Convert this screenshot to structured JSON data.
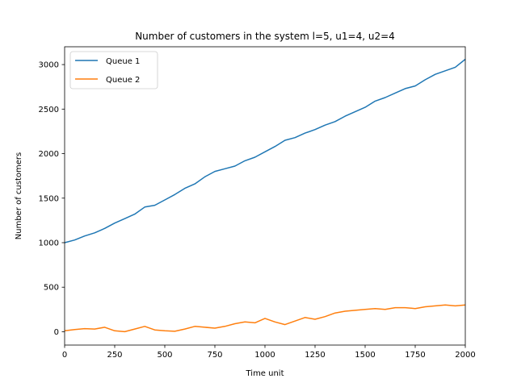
{
  "chart_data": {
    "type": "line",
    "title": "Number of customers in the system l=5, u1=4, u2=4",
    "xlabel": "Time unit",
    "ylabel": "Number of customers",
    "xlim": [
      0,
      2000
    ],
    "ylim": [
      -150,
      3200
    ],
    "xticks": [
      0,
      250,
      500,
      750,
      1000,
      1250,
      1500,
      1750,
      2000
    ],
    "yticks": [
      0,
      500,
      1000,
      1500,
      2000,
      2500,
      3000
    ],
    "grid": false,
    "legend_position": "top-left",
    "series": [
      {
        "name": "Queue 1",
        "color": "#1f77b4",
        "x": [
          0,
          50,
          100,
          150,
          200,
          250,
          300,
          350,
          400,
          450,
          500,
          550,
          600,
          650,
          700,
          750,
          800,
          850,
          900,
          950,
          1000,
          1050,
          1100,
          1150,
          1200,
          1250,
          1300,
          1350,
          1400,
          1450,
          1500,
          1550,
          1600,
          1650,
          1700,
          1750,
          1800,
          1850,
          1900,
          1950,
          2000
        ],
        "values": [
          1000,
          1030,
          1075,
          1110,
          1160,
          1220,
          1270,
          1320,
          1400,
          1420,
          1480,
          1540,
          1610,
          1660,
          1740,
          1800,
          1830,
          1860,
          1920,
          1960,
          2020,
          2080,
          2150,
          2180,
          2230,
          2270,
          2320,
          2360,
          2420,
          2470,
          2520,
          2590,
          2630,
          2680,
          2730,
          2760,
          2830,
          2890,
          2930,
          2970,
          3060
        ]
      },
      {
        "name": "Queue 2",
        "color": "#ff7f0e",
        "x": [
          0,
          50,
          100,
          150,
          200,
          250,
          300,
          350,
          400,
          450,
          500,
          550,
          600,
          650,
          700,
          750,
          800,
          850,
          900,
          950,
          1000,
          1050,
          1100,
          1150,
          1200,
          1250,
          1300,
          1350,
          1400,
          1450,
          1500,
          1550,
          1600,
          1650,
          1700,
          1750,
          1800,
          1850,
          1900,
          1950,
          2000
        ],
        "values": [
          10,
          25,
          35,
          30,
          50,
          10,
          0,
          30,
          60,
          20,
          10,
          5,
          30,
          60,
          50,
          40,
          60,
          90,
          110,
          100,
          150,
          110,
          80,
          120,
          160,
          140,
          170,
          210,
          230,
          240,
          250,
          260,
          250,
          270,
          270,
          260,
          280,
          290,
          300,
          290,
          300
        ]
      }
    ]
  }
}
